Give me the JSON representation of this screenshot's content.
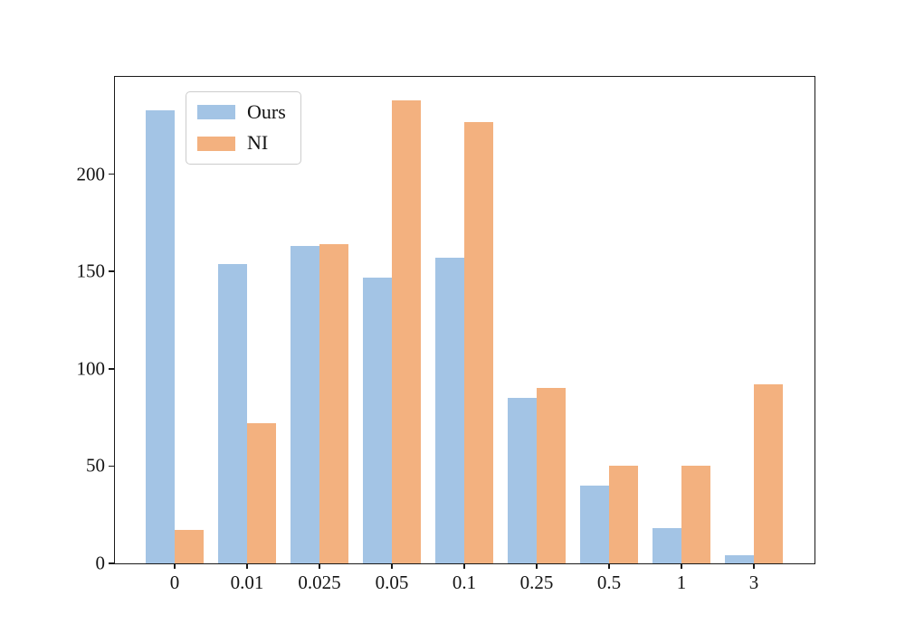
{
  "figure": {
    "background": "#ffffff",
    "axis_color": "#1a1a1a",
    "text_color": "#141414"
  },
  "chart_data": {
    "type": "bar",
    "title": "",
    "xlabel": "",
    "ylabel": "",
    "categories": [
      "0",
      "0.01",
      "0.025",
      "0.05",
      "0.1",
      "0.25",
      "0.5",
      "1",
      "3"
    ],
    "series": [
      {
        "name": "Ours",
        "color": "#a3c4e5",
        "values": [
          233,
          154,
          163,
          147,
          157,
          85,
          40,
          18,
          4
        ]
      },
      {
        "name": "NI",
        "color": "#f3b17f",
        "values": [
          17,
          72,
          164,
          238,
          227,
          90,
          50,
          50,
          92
        ]
      }
    ],
    "yticks": [
      0,
      50,
      100,
      150,
      200
    ],
    "yticklabels": [
      "0",
      "50",
      "100",
      "150",
      "200"
    ],
    "ylim": [
      0,
      250
    ],
    "grid": false,
    "legend": {
      "position": "upper-left",
      "entries": [
        "Ours",
        "NI"
      ]
    }
  }
}
